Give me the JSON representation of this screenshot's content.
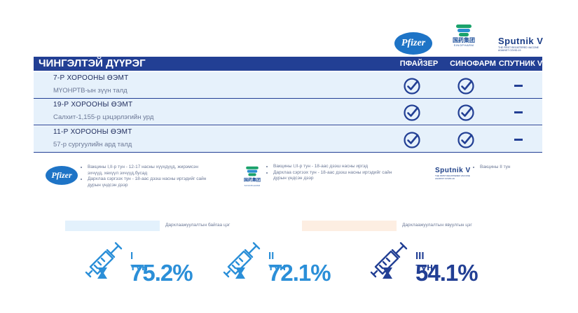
{
  "logos": {
    "pfizer": "Pfizer",
    "sinopharm_cn": "国药集团",
    "sinopharm_en": "SINOPHARM",
    "sputnik": "Sputnik V",
    "sputnik_sub": "THE FIRST REGISTERED VACCINE AGAINST COVID-19"
  },
  "table": {
    "district": "ЧИНГЭЛТЭЙ ДҮҮРЭГ",
    "columns": [
      "ПФАЙЗЕР",
      "СИНОФАРМ",
      "СПУТНИК V"
    ],
    "rows": [
      {
        "name": "7-Р ХОРООНЫ ӨЭМТ",
        "address": "МҮОНРТВ-ын зүүн талд",
        "pfizer": true,
        "sinopharm": true,
        "sputnik": false
      },
      {
        "name": "19-Р ХОРООНЫ ӨЭМТ",
        "address": "Салхит-1,155-р цэцэрлэгийн урд",
        "pfizer": true,
        "sinopharm": true,
        "sputnik": false
      },
      {
        "name": "11-Р ХОРООНЫ ӨЭМТ",
        "address": "57-р сургуулийн ард талд",
        "pfizer": true,
        "sinopharm": true,
        "sputnik": false
      }
    ]
  },
  "notes": {
    "pfizer": [
      "Вакцины I,II-р тун - 12-17 насны хүүхдүүд, жирэмсэн эхчүүд, хөхүүл эхчүүд,бусад",
      "Дархлаа сэргээх тун - 18-аас дээш насны иргэдийг сайн дурын үндсэн дээр"
    ],
    "sinopharm": [
      "Вакцины I,II-р тун - 18-аас дээш насны иргэд",
      "Дархлаа сэргээх тун - 18-аас дээш насны иргэдийг сайн дурын үндсэн дээр"
    ],
    "sputnik": [
      "Вакцины II тун"
    ]
  },
  "legend": {
    "available": "Дархлаажуулалтын байгаа цэг",
    "sending": "Дархлаажуулалтын явуулгын цэг"
  },
  "doses": [
    {
      "label": "I тун",
      "percent": "75.2%",
      "value": 75.2,
      "color": "#2b8fd8"
    },
    {
      "label": "II тун",
      "percent": "72.1%",
      "value": 72.1,
      "color": "#2b8fd8"
    },
    {
      "label": "III тун",
      "percent": "54.1%",
      "value": 54.1,
      "color": "#223f94"
    }
  ],
  "colors": {
    "header": "#223f94",
    "row_bg": "#e6f1fb",
    "legend_available": "#e3f1fc",
    "legend_sending": "#fdeee2"
  }
}
